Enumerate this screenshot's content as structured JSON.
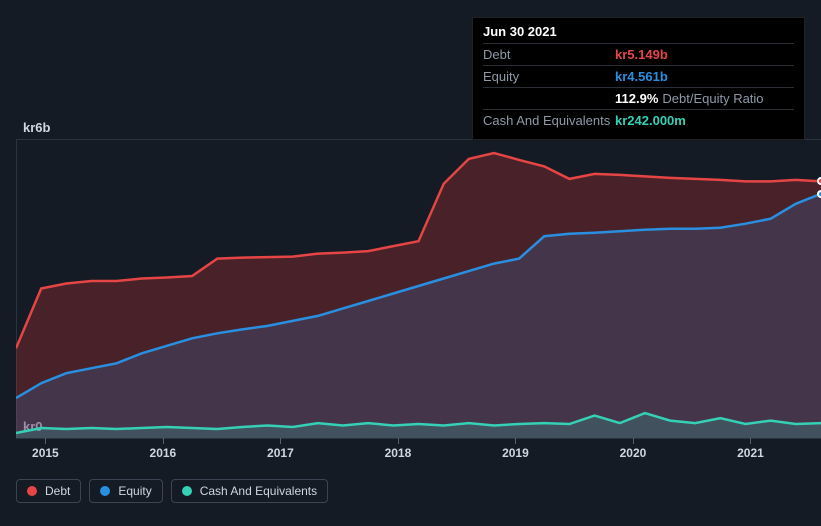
{
  "chart": {
    "type": "area",
    "background_color": "#151b24",
    "grid_color": "#2a3340",
    "text_color": "#cfd6e0",
    "y_max_label": "kr6b",
    "y_min_label": "kr0",
    "ylim": [
      0,
      6
    ],
    "x_labels": [
      "2015",
      "2016",
      "2017",
      "2018",
      "2019",
      "2020",
      "2021"
    ],
    "series": {
      "debt": {
        "label": "Debt",
        "color": "#e64545",
        "fill": "rgba(180,50,50,0.32)",
        "values": [
          1.8,
          3.0,
          3.1,
          3.15,
          3.15,
          3.2,
          3.22,
          3.25,
          3.6,
          3.62,
          3.63,
          3.64,
          3.7,
          3.72,
          3.75,
          3.85,
          3.95,
          5.1,
          5.6,
          5.72,
          5.58,
          5.45,
          5.2,
          5.3,
          5.28,
          5.25,
          5.22,
          5.2,
          5.18,
          5.15,
          5.15,
          5.18,
          5.15
        ]
      },
      "equity": {
        "label": "Equity",
        "color": "#2a8fe0",
        "fill": "rgba(60,100,160,0.30)",
        "values": [
          0.8,
          1.1,
          1.3,
          1.4,
          1.5,
          1.7,
          1.85,
          2.0,
          2.1,
          2.18,
          2.25,
          2.35,
          2.45,
          2.6,
          2.75,
          2.9,
          3.05,
          3.2,
          3.35,
          3.5,
          3.6,
          4.05,
          4.1,
          4.12,
          4.15,
          4.18,
          4.2,
          4.2,
          4.22,
          4.3,
          4.4,
          4.7,
          4.9
        ]
      },
      "cash": {
        "label": "Cash And Equivalents",
        "color": "#35d0b5",
        "fill": "rgba(53,208,181,0.18)",
        "values": [
          0.1,
          0.2,
          0.18,
          0.2,
          0.18,
          0.2,
          0.22,
          0.2,
          0.18,
          0.22,
          0.25,
          0.22,
          0.3,
          0.25,
          0.3,
          0.25,
          0.28,
          0.25,
          0.3,
          0.25,
          0.28,
          0.3,
          0.28,
          0.45,
          0.3,
          0.5,
          0.35,
          0.3,
          0.4,
          0.28,
          0.35,
          0.28,
          0.3
        ]
      }
    }
  },
  "tooltip": {
    "date": "Jun 30 2021",
    "debt_label": "Debt",
    "debt_value": "kr5.149b",
    "equity_label": "Equity",
    "equity_value": "kr4.561b",
    "ratio_value": "112.9%",
    "ratio_suffix": "Debt/Equity Ratio",
    "cash_label": "Cash And Equivalents",
    "cash_value": "kr242.000m"
  },
  "legend": {
    "debt": "Debt",
    "equity": "Equity",
    "cash": "Cash And Equivalents"
  }
}
